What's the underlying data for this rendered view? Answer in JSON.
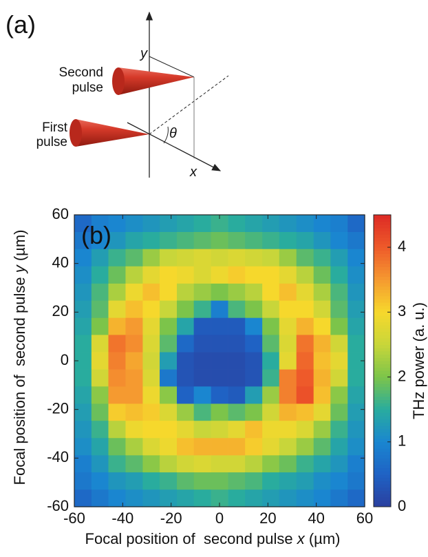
{
  "diagram": {
    "panel_label": "(a)",
    "y_axis": "y",
    "x_axis": "x",
    "angle": "θ",
    "second_pulse": [
      "Second",
      "pulse"
    ],
    "first_pulse": [
      "First",
      "pulse"
    ]
  },
  "chart_data": {
    "type": "heatmap",
    "panel_label": "(b)",
    "x_label": {
      "text": "Focal position of  second pulse ",
      "var": "x",
      "unit": " (µm)"
    },
    "y_label": {
      "text": "Focal position of  second pulse ",
      "var": "y",
      "unit": " (µm)"
    },
    "colorbar_label": "THz power (a. u.)",
    "x": [
      -56.5,
      -49.4,
      -42.4,
      -35.3,
      -28.2,
      -21.2,
      -14.1,
      -7.1,
      0,
      7.1,
      14.1,
      21.2,
      28.2,
      35.3,
      42.4,
      49.4,
      56.5
    ],
    "y": [
      56.5,
      49.4,
      42.4,
      35.3,
      28.2,
      21.2,
      14.1,
      7.1,
      0,
      -7.1,
      -14.1,
      -21.2,
      -28.2,
      -35.3,
      -42.4,
      -49.4,
      -56.5
    ],
    "z": [
      [
        0.6,
        0.9,
        1.0,
        1.1,
        1.2,
        1.3,
        1.4,
        1.5,
        1.6,
        1.5,
        1.4,
        1.3,
        1.2,
        1.1,
        1.0,
        0.9,
        0.6
      ],
      [
        0.8,
        1.0,
        1.2,
        1.4,
        1.5,
        1.6,
        1.7,
        1.8,
        1.9,
        1.8,
        1.7,
        1.6,
        1.5,
        1.4,
        1.2,
        1.0,
        0.8
      ],
      [
        1.0,
        1.3,
        1.6,
        1.8,
        2.2,
        2.5,
        2.6,
        2.7,
        2.6,
        2.7,
        2.6,
        2.5,
        2.2,
        1.8,
        1.6,
        1.3,
        1.0
      ],
      [
        1.1,
        1.5,
        1.9,
        2.4,
        2.8,
        3.0,
        2.9,
        2.7,
        2.9,
        3.1,
        3.0,
        3.0,
        2.8,
        2.4,
        1.9,
        1.5,
        1.1
      ],
      [
        1.2,
        1.7,
        2.3,
        2.9,
        3.2,
        3.0,
        2.4,
        2.2,
        2.0,
        2.2,
        2.4,
        3.0,
        3.2,
        2.8,
        2.3,
        1.7,
        1.2
      ],
      [
        1.3,
        1.8,
        2.8,
        3.2,
        3.0,
        2.5,
        2.0,
        1.6,
        0.9,
        1.7,
        2.0,
        2.5,
        3.0,
        3.0,
        2.6,
        1.8,
        1.3
      ],
      [
        1.4,
        2.0,
        3.3,
        3.5,
        2.8,
        2.0,
        1.4,
        0.4,
        0.4,
        0.4,
        1.0,
        2.0,
        2.8,
        3.3,
        3.0,
        2.0,
        1.4
      ],
      [
        1.5,
        2.7,
        3.8,
        3.6,
        2.7,
        1.8,
        0.6,
        0.3,
        0.3,
        0.3,
        0.5,
        1.8,
        2.7,
        3.8,
        3.3,
        2.6,
        1.5
      ],
      [
        1.5,
        2.8,
        3.7,
        3.4,
        2.6,
        1.3,
        0.3,
        0.2,
        0.2,
        0.2,
        0.3,
        1.5,
        2.8,
        3.9,
        3.2,
        2.8,
        1.5
      ],
      [
        1.5,
        2.6,
        3.6,
        3.5,
        2.7,
        0.8,
        0.3,
        0.2,
        0.2,
        0.2,
        0.3,
        1.6,
        3.7,
        4.0,
        3.3,
        2.6,
        1.5
      ],
      [
        1.4,
        2.1,
        3.5,
        3.5,
        2.9,
        2.1,
        0.5,
        1.0,
        0.5,
        0.4,
        1.3,
        2.2,
        3.7,
        4.1,
        3.2,
        2.1,
        1.4
      ],
      [
        1.3,
        1.9,
        3.1,
        3.2,
        3.1,
        2.7,
        2.2,
        1.7,
        2.0,
        1.8,
        2.0,
        2.6,
        3.3,
        3.2,
        2.8,
        1.9,
        1.3
      ],
      [
        1.2,
        1.6,
        2.4,
        2.9,
        3.0,
        3.0,
        2.8,
        2.5,
        2.6,
        2.8,
        3.2,
        2.9,
        2.9,
        2.7,
        2.2,
        1.6,
        1.2
      ],
      [
        1.1,
        1.4,
        1.9,
        2.3,
        2.7,
        2.9,
        3.2,
        3.3,
        3.3,
        3.3,
        3.1,
        2.8,
        2.5,
        2.2,
        1.8,
        1.4,
        1.1
      ],
      [
        0.9,
        1.2,
        1.6,
        1.8,
        2.1,
        2.4,
        2.6,
        2.7,
        2.6,
        2.6,
        2.4,
        2.1,
        1.9,
        1.6,
        1.4,
        1.2,
        0.9
      ],
      [
        0.8,
        1.0,
        1.2,
        1.3,
        1.5,
        1.6,
        1.8,
        1.9,
        1.9,
        1.8,
        1.7,
        1.5,
        1.4,
        1.3,
        1.1,
        1.0,
        0.8
      ],
      [
        0.6,
        0.8,
        1.0,
        1.1,
        1.2,
        1.3,
        1.4,
        1.5,
        1.6,
        1.5,
        1.4,
        1.3,
        1.2,
        1.1,
        1.0,
        0.8,
        0.6
      ]
    ],
    "xlim": [
      -60,
      60
    ],
    "ylim": [
      -60,
      60
    ],
    "xticks": [
      -60,
      -40,
      -20,
      0,
      20,
      40,
      60
    ],
    "yticks": [
      -60,
      -40,
      -20,
      0,
      20,
      40,
      60
    ],
    "clim": [
      0,
      4.5
    ],
    "cticks": [
      0,
      1,
      2,
      3,
      4
    ],
    "colormap": [
      "#2b3f9e",
      "#1f62c4",
      "#1a86d0",
      "#29ac9e",
      "#7cc44a",
      "#c8d63a",
      "#f6d82c",
      "#f59a30",
      "#ee5a2a",
      "#dd2b25"
    ]
  }
}
